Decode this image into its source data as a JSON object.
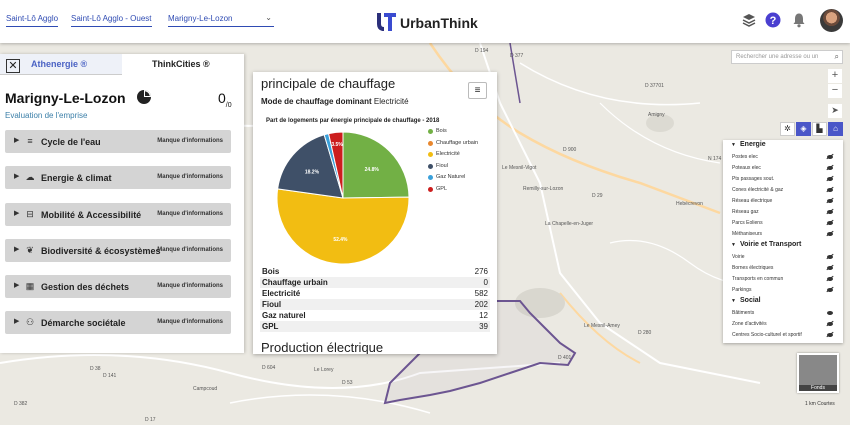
{
  "topbar": {
    "breadcrumb": [
      "Saint-Lô Agglo",
      "Saint-Lô Agglo - Ouest"
    ],
    "commune_select": "Marigny-Le-Lozon",
    "brand": "UrbanThink"
  },
  "map": {
    "search_placeholder": "Rechercher une adresse ou un",
    "labels": [
      "D 194",
      "D 377",
      "D 37701",
      "Amigny",
      "D 900",
      "Le Mesnil-Vigot",
      "D 29",
      "Remilly-sur-Lozon",
      "Hebécrevon",
      "N 174",
      "La Chapelle-en-Juger",
      "D 141",
      "D 38",
      "Campcoud",
      "D 604",
      "Le Lorey",
      "D 53",
      "D 382",
      "Le Mesnil-Amey",
      "D 280",
      "D 17",
      "D 401"
    ],
    "minimap_label": "Fonds",
    "scale_label": "1 km",
    "scale_attribution": "Courtes"
  },
  "left_panel": {
    "tab_active": "Athenergie ®",
    "tab_other": "ThinkCities ®",
    "commune_name": "Marigny-Le-Lozon",
    "score_main": "0",
    "score_sub": "/0",
    "evaluation_label": "Evaluation de l'emprise",
    "themes": [
      {
        "label": "Cycle de l'eau",
        "icon": "≡",
        "info": "Manque d'informations"
      },
      {
        "label": "Energie & climat",
        "icon": "☁",
        "info": "Manque d'informations"
      },
      {
        "label": "Mobilité & Accessibilité",
        "icon": "⊟",
        "info": "Manque d'informations"
      },
      {
        "label": "Biodiversité & écosystèmes",
        "icon": "❦",
        "info": "Manque d'informations"
      },
      {
        "label": "Gestion des déchets",
        "icon": "▦",
        "info": "Manque d'informations"
      },
      {
        "label": "Démarche sociétale",
        "icon": "⚇",
        "info": "Manque d'informations"
      }
    ]
  },
  "card": {
    "title": "principale de chauffage",
    "mode_label": "Mode de chauffage dominant",
    "mode_value": "Electricité",
    "menu_icon": "≡",
    "next_section": "Production électrique",
    "table": [
      {
        "k": "Bois",
        "v": "276"
      },
      {
        "k": "Chauffage urbain",
        "v": "0"
      },
      {
        "k": "Electricité",
        "v": "582"
      },
      {
        "k": "Fioul",
        "v": "202"
      },
      {
        "k": "Gaz naturel",
        "v": "12"
      },
      {
        "k": "GPL",
        "v": "39"
      }
    ]
  },
  "chart_data": {
    "type": "pie",
    "title": "Part de logements par énergie principale de chauffage - 2018",
    "categories": [
      "Bois",
      "Chauffage urbain",
      "Electricité",
      "Fioul",
      "Gaz Naturel",
      "GPL"
    ],
    "values": [
      24.8,
      0,
      52.4,
      18.2,
      1.1,
      3.5
    ],
    "data_labels": [
      "24.8%",
      "",
      "52.4%",
      "18.2%",
      "",
      "3.5%"
    ],
    "colors": [
      "#72b045",
      "#e8872e",
      "#f2bd12",
      "#3f5068",
      "#3aa0da",
      "#cc1e1e"
    ],
    "legend_position": "right"
  },
  "layers": {
    "sections": [
      {
        "title": "Energie",
        "items": [
          {
            "label": "Postes elec",
            "on": false
          },
          {
            "label": "Poteaux elec",
            "on": false
          },
          {
            "label": "Pts passages sout.",
            "on": false
          },
          {
            "label": "Cones électricité & gaz",
            "on": false
          },
          {
            "label": "Réseau électrique",
            "on": false
          },
          {
            "label": "Réseau gaz",
            "on": false
          },
          {
            "label": "Parcs Eoliens",
            "on": false
          },
          {
            "label": "Méthaniseurs",
            "on": false
          }
        ]
      },
      {
        "title": "Voirie et Transport",
        "items": [
          {
            "label": "Voirie",
            "on": false
          },
          {
            "label": "Bornes électriques",
            "on": false
          },
          {
            "label": "Transports en commun",
            "on": false
          },
          {
            "label": "Parkings",
            "on": false
          }
        ]
      },
      {
        "title": "Social",
        "items": [
          {
            "label": "Bâtiments",
            "on": true
          },
          {
            "label": "Zone d'activités",
            "on": false
          },
          {
            "label": "Centres Socio-culturel et sportif",
            "on": false
          }
        ]
      }
    ]
  }
}
